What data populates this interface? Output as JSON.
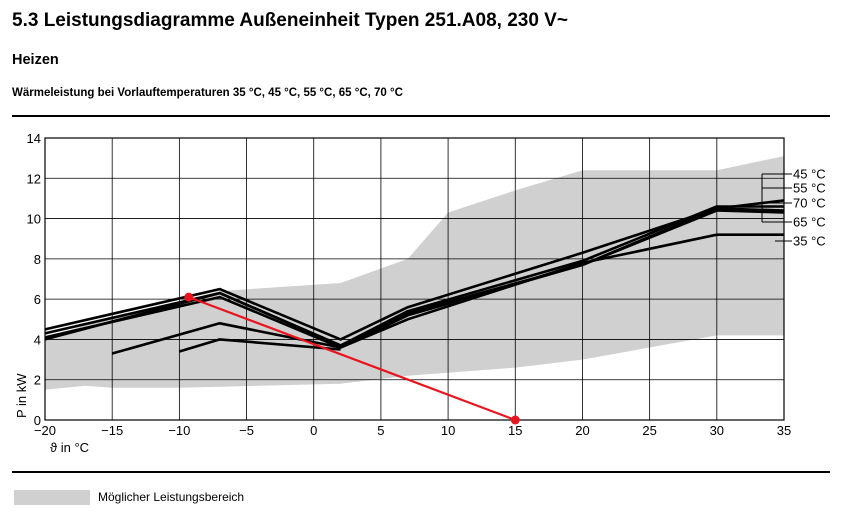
{
  "header": {
    "title": "5.3 Leistungsdiagramme Außeneinheit Typen 251.A08, 230 V~",
    "subtitle": "Heizen",
    "caption": "Wärmeleistung bei Vorlauftemperaturen 35 °C, 45 °C, 55 °C, 65 °C, 70 °C"
  },
  "legend": {
    "label": "Möglicher Leistungsbereich",
    "color": "#d0d0d0"
  },
  "chart_data": {
    "type": "line",
    "title": "Wärmeleistung bei Vorlauftemperaturen 35 °C, 45 °C, 55 °C, 65 °C, 70 °C",
    "xlabel": "ϑ in °C",
    "ylabel": "P in kW",
    "xlim": [
      -20,
      35
    ],
    "ylim": [
      0,
      14
    ],
    "xticks": [
      -20,
      -15,
      -10,
      -5,
      0,
      5,
      10,
      15,
      20,
      25,
      30,
      35
    ],
    "yticks": [
      0,
      2,
      4,
      6,
      8,
      10,
      12,
      14
    ],
    "grid": true,
    "area": {
      "name": "Möglicher Leistungsbereich",
      "upper": [
        [
          -20,
          4.1
        ],
        [
          -15,
          5.1
        ],
        [
          -10,
          5.9
        ],
        [
          -7,
          6.4
        ],
        [
          2,
          6.8
        ],
        [
          7,
          8.0
        ],
        [
          10,
          10.3
        ],
        [
          15,
          11.4
        ],
        [
          20,
          12.4
        ],
        [
          30,
          12.4
        ],
        [
          35,
          13.1
        ]
      ],
      "lower": [
        [
          -20,
          1.5
        ],
        [
          -17,
          1.7
        ],
        [
          -15,
          1.6
        ],
        [
          -10,
          1.6
        ],
        [
          2,
          1.8
        ],
        [
          7,
          2.2
        ],
        [
          15,
          2.6
        ],
        [
          20,
          3.0
        ],
        [
          25,
          3.6
        ],
        [
          30,
          4.2
        ],
        [
          35,
          4.2
        ]
      ]
    },
    "series": [
      {
        "name": "45 °C",
        "values": [
          [
            -20,
            4.5
          ],
          [
            -7,
            6.5
          ],
          [
            2,
            4.0
          ],
          [
            7,
            5.6
          ],
          [
            20,
            8.3
          ],
          [
            30,
            10.5
          ],
          [
            35,
            10.9
          ]
        ]
      },
      {
        "name": "55 °C",
        "values": [
          [
            -20,
            4.3
          ],
          [
            -7,
            6.3
          ],
          [
            2,
            3.7
          ],
          [
            7,
            5.4
          ],
          [
            20,
            7.9
          ],
          [
            30,
            10.6
          ],
          [
            35,
            10.6
          ]
        ]
      },
      {
        "name": "70 °C",
        "values": [
          [
            -20,
            4.0
          ],
          [
            -7,
            6.3
          ],
          [
            2,
            3.7
          ],
          [
            7,
            5.3
          ],
          [
            20,
            7.7
          ],
          [
            30,
            10.5
          ],
          [
            35,
            10.4
          ]
        ]
      },
      {
        "name": "65 °C",
        "values": [
          [
            -20,
            4.1
          ],
          [
            -7,
            6.1
          ],
          [
            2,
            3.6
          ],
          [
            7,
            5.2
          ],
          [
            20,
            7.7
          ],
          [
            30,
            10.4
          ],
          [
            35,
            10.3
          ]
        ]
      },
      {
        "name": "35 °C",
        "values": [
          [
            -15,
            3.3
          ],
          [
            -7,
            4.8
          ],
          [
            2,
            3.6
          ],
          [
            7,
            5.0
          ],
          [
            20,
            7.8
          ],
          [
            30,
            9.2
          ],
          [
            35,
            9.2
          ]
        ]
      },
      {
        "name": "",
        "values": [
          [
            -10,
            3.4
          ],
          [
            -7,
            4.0
          ],
          [
            2,
            3.5
          ]
        ]
      }
    ],
    "annotation": {
      "color": "#e8141e",
      "points": [
        [
          -9.3,
          6.1
        ],
        [
          15,
          0
        ]
      ]
    }
  }
}
